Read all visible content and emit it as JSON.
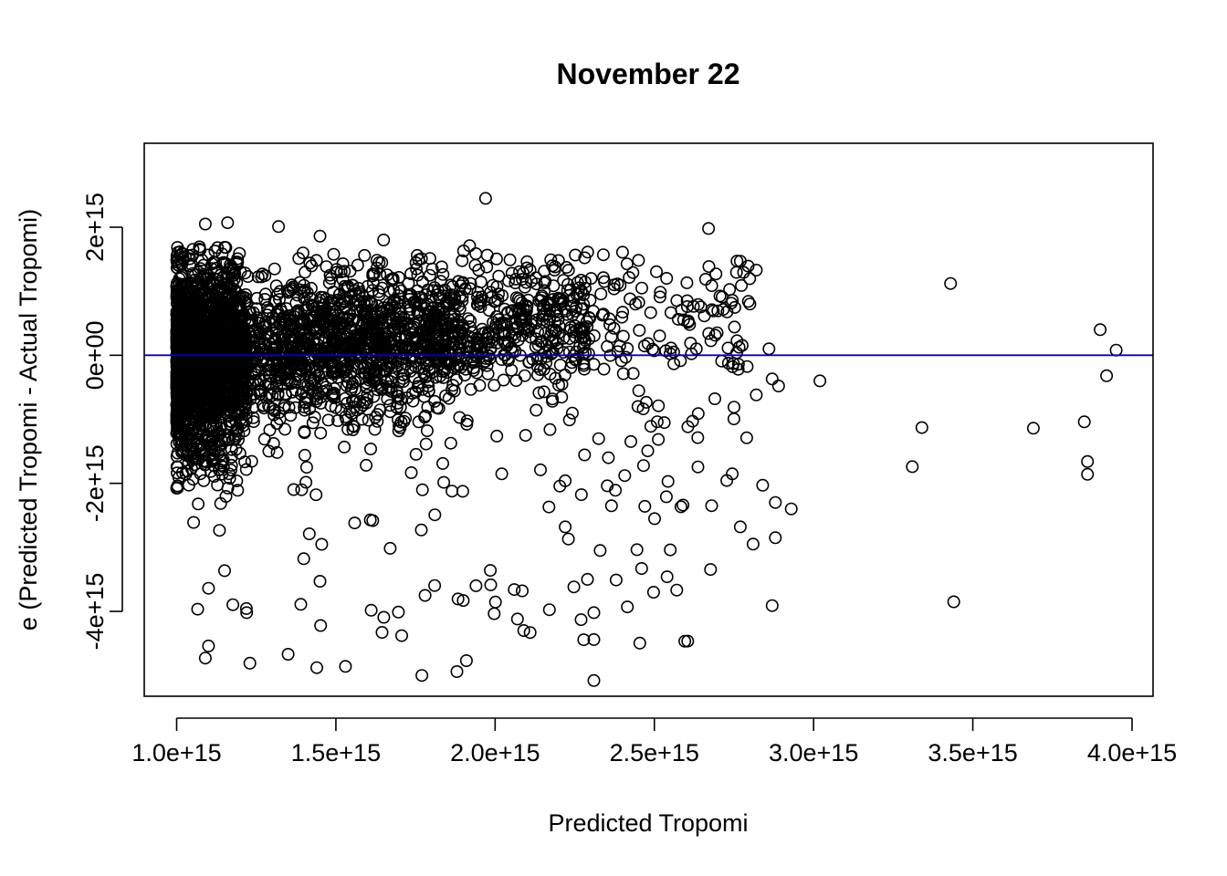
{
  "chart_data": {
    "type": "scatter",
    "title": "November 22",
    "xlabel": "Predicted Tropomi",
    "ylabel": "e (Predicted Tropomi - Actual Tropomi)",
    "xlim": [
      895000000000000.0,
      4065000000000000.0
    ],
    "ylim": [
      -5400000000000000.0,
      3300000000000000.0
    ],
    "x_ticks": [
      {
        "value": 1000000000000000.0,
        "label": "1.0e+15"
      },
      {
        "value": 1500000000000000.0,
        "label": "1.5e+15"
      },
      {
        "value": 2000000000000000.0,
        "label": "2.0e+15"
      },
      {
        "value": 2500000000000000.0,
        "label": "2.5e+15"
      },
      {
        "value": 3000000000000000.0,
        "label": "3.0e+15"
      },
      {
        "value": 3500000000000000.0,
        "label": "3.5e+15"
      },
      {
        "value": 4000000000000000.0,
        "label": "4.0e+15"
      }
    ],
    "y_ticks": [
      {
        "value": -4000000000000000.0,
        "label": "-4e+15"
      },
      {
        "value": -2000000000000000.0,
        "label": "-2e+15"
      },
      {
        "value": 0,
        "label": "0e+00"
      },
      {
        "value": 2000000000000000.0,
        "label": "2e+15"
      }
    ],
    "reference_line": {
      "y": 0,
      "color": "#0000cc"
    },
    "grid": false,
    "marker": "open-circle",
    "point_color": "#000000",
    "series": [
      {
        "points_sample": [
          [
            1970000000000000.0,
            2450000000000000.0
          ],
          [
            1090000000000000.0,
            2050000000000000.0
          ],
          [
            1160000000000000.0,
            2070000000000000.0
          ],
          [
            1320000000000000.0,
            2010000000000000.0
          ],
          [
            2670000000000000.0,
            1980000000000000.0
          ],
          [
            1450000000000000.0,
            1860000000000000.0
          ],
          [
            1650000000000000.0,
            1800000000000000.0
          ],
          [
            2400000000000000.0,
            1610000000000000.0
          ],
          [
            3430000000000000.0,
            1120000000000000.0
          ],
          [
            3900000000000000.0,
            400000000000000.0
          ],
          [
            3950000000000000.0,
            80000000000000.0
          ],
          [
            3920000000000000.0,
            -320000000000000.0
          ],
          [
            3020000000000000.0,
            -400000000000000.0
          ],
          [
            3340000000000000.0,
            -1130000000000000.0
          ],
          [
            3690000000000000.0,
            -1140000000000000.0
          ],
          [
            3850000000000000.0,
            -1040000000000000.0
          ],
          [
            3860000000000000.0,
            -1660000000000000.0
          ],
          [
            3860000000000000.0,
            -1860000000000000.0
          ],
          [
            3310000000000000.0,
            -1740000000000000.0
          ],
          [
            2870000000000000.0,
            -3910000000000000.0
          ],
          [
            3440000000000000.0,
            -3850000000000000.0
          ],
          [
            2930000000000000.0,
            -2400000000000000.0
          ],
          [
            2880000000000000.0,
            -2300000000000000.0
          ],
          [
            2810000000000000.0,
            -2950000000000000.0
          ],
          [
            2770000000000000.0,
            -2680000000000000.0
          ],
          [
            2880000000000000.0,
            -2850000000000000.0
          ],
          [
            2840000000000000.0,
            -2030000000000000.0
          ],
          [
            2270000000000000.0,
            -4130000000000000.0
          ],
          [
            2310000000000000.0,
            -4020000000000000.0
          ],
          [
            2310000000000000.0,
            -4440000000000000.0
          ],
          [
            2310000000000000.0,
            -5080000000000000.0
          ],
          [
            2110000000000000.0,
            -4330000000000000.0
          ],
          [
            2070000000000000.0,
            -4120000000000000.0
          ],
          [
            2090000000000000.0,
            -4300000000000000.0
          ],
          [
            1770000000000000.0,
            -5000000000000000.0
          ],
          [
            1880000000000000.0,
            -4940000000000000.0
          ],
          [
            1910000000000000.0,
            -4770000000000000.0
          ],
          [
            1350000000000000.0,
            -4670000000000000.0
          ],
          [
            1440000000000000.0,
            -4880000000000000.0
          ],
          [
            1530000000000000.0,
            -4860000000000000.0
          ],
          [
            1100000000000000.0,
            -4540000000000000.0
          ],
          [
            1090000000000000.0,
            -4730000000000000.0
          ],
          [
            1230000000000000.0,
            -4810000000000000.0
          ],
          [
            1220000000000000.0,
            -4020000000000000.0
          ],
          [
            1100000000000000.0,
            -3640000000000000.0
          ],
          [
            1390000000000000.0,
            -3890000000000000.0
          ],
          [
            1450000000000000.0,
            -3530000000000000.0
          ],
          [
            2460000000000000.0,
            -3330000000000000.0
          ],
          [
            2540000000000000.0,
            -3460000000000000.0
          ],
          [
            2550000000000000.0,
            -3040000000000000.0
          ],
          [
            2330000000000000.0,
            -3050000000000000.0
          ],
          [
            2380000000000000.0,
            -3510000000000000.0
          ],
          [
            2290000000000000.0,
            -3500000000000000.0
          ],
          [
            2060000000000000.0,
            -3660000000000000.0
          ],
          [
            1940000000000000.0,
            -3600000000000000.0
          ],
          [
            1900000000000000.0,
            -3830000000000000.0
          ],
          [
            1780000000000000.0,
            -3750000000000000.0
          ],
          [
            2620000000000000.0,
            -1030000000000000.0
          ],
          [
            2690000000000000.0,
            -680000000000000.0
          ],
          [
            2820000000000000.0,
            -620000000000000.0
          ],
          [
            2790000000000000.0,
            -1290000000000000.0
          ],
          [
            2750000000000000.0,
            -810000000000000.0
          ],
          [
            2680000000000000.0,
            -2350000000000000.0
          ],
          [
            2590000000000000.0,
            -2340000000000000.0
          ],
          [
            2470000000000000.0,
            -2360000000000000.0
          ],
          [
            2220000000000000.0,
            -1960000000000000.0
          ],
          [
            2220000000000000.0,
            -2680000000000000.0
          ],
          [
            2230000000000000.0,
            -2870000000000000.0
          ],
          [
            1590000000000000.0,
            1560000000000000.0
          ],
          [
            1920000000000000.0,
            1710000000000000.0
          ],
          [
            2340000000000000.0,
            1570000000000000.0
          ],
          [
            2770000000000000.0,
            1470000000000000.0
          ],
          [
            2820000000000000.0,
            1330000000000000.0
          ],
          [
            2800000000000000.0,
            800000000000000.0
          ],
          [
            2860000000000000.0,
            100000000000000.0
          ],
          [
            2890000000000000.0,
            -480000000000000.0
          ],
          [
            2870000000000000.0,
            -370000000000000.0
          ]
        ]
      }
    ]
  }
}
